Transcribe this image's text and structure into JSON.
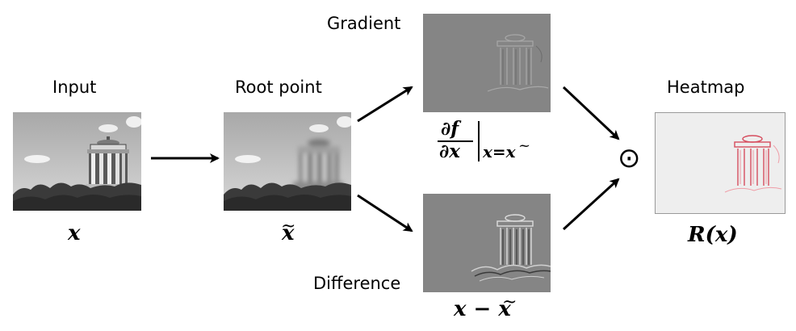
{
  "labels": {
    "input": "Input",
    "root_point": "Root point",
    "gradient": "Gradient",
    "difference": "Difference",
    "heatmap": "Heatmap"
  },
  "math": {
    "x": "x",
    "x_tilde": "x",
    "gradient_num": "∂f",
    "gradient_den": "∂x",
    "gradient_eval": "x=x",
    "difference": "x − x",
    "heatmap": "R(x)",
    "odot": "⊙"
  },
  "colors": {
    "photo_sky": "#c9c9c9",
    "gradient_bg": "#858585",
    "heatmap_bg": "#eeeeee",
    "heatmap_relevance": "#d23246"
  }
}
